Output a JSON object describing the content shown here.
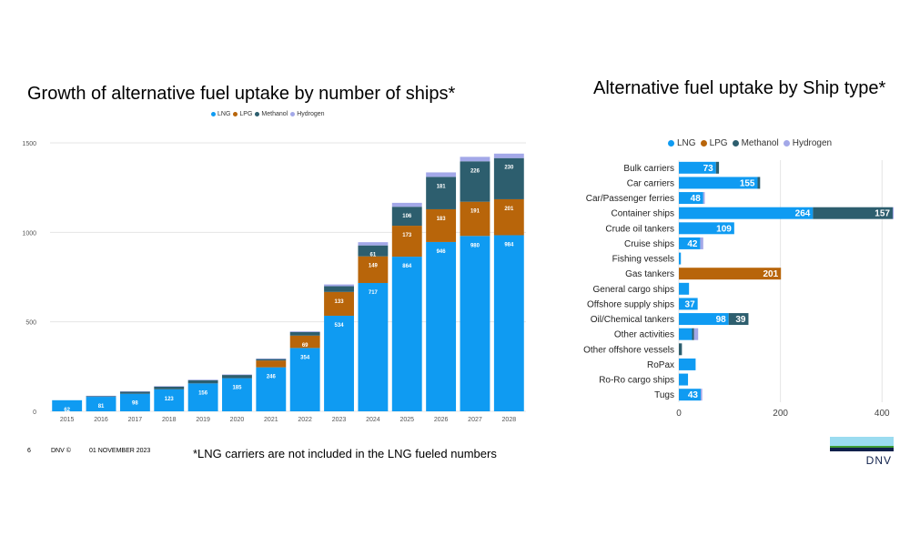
{
  "left_title": "Growth of alternative fuel uptake by number of ships*",
  "right_title": "Alternative fuel uptake by Ship type*",
  "footer": {
    "page": "6",
    "org": "DNV ©",
    "date": "01 NOVEMBER 2023",
    "note": "*LNG carriers are not included in the LNG fueled numbers"
  },
  "logo": {
    "text": "DNV",
    "colors": [
      "#9bdcf0",
      "#3f9c35",
      "#0f204b"
    ]
  },
  "colors": {
    "LNG": "#0f9bf2",
    "LPG": "#b8650a",
    "Methanol": "#2d5e6e",
    "Hydrogen": "#a3a8e8"
  },
  "chart_data": [
    {
      "type": "bar",
      "stacked": true,
      "orientation": "vertical",
      "categories": [
        "2015",
        "2016",
        "2017",
        "2018",
        "2019",
        "2020",
        "2021",
        "2022",
        "2023",
        "2024",
        "2025",
        "2026",
        "2027",
        "2028"
      ],
      "ylim": [
        0,
        1500
      ],
      "yticks": [
        0,
        500,
        1000,
        1500
      ],
      "grid": true,
      "legend_position": "top",
      "series": [
        {
          "name": "LNG",
          "color": "#0f9bf2",
          "values": [
            62,
            81,
            98,
            123,
            156,
            185,
            246,
            354,
            534,
            717,
            864,
            946,
            980,
            984
          ]
        },
        {
          "name": "LPG",
          "color": "#b8650a",
          "values": [
            0,
            0,
            0,
            0,
            0,
            0,
            38,
            69,
            133,
            149,
            173,
            183,
            191,
            201
          ]
        },
        {
          "name": "Methanol",
          "color": "#2d5e6e",
          "values": [
            0,
            4,
            12,
            15,
            18,
            18,
            8,
            20,
            32,
            61,
            106,
            181,
            226,
            230
          ]
        },
        {
          "name": "Hydrogen",
          "color": "#a3a8e8",
          "values": [
            0,
            2,
            2,
            3,
            3,
            3,
            3,
            4,
            10,
            18,
            22,
            25,
            25,
            25
          ]
        }
      ],
      "data_labels": {
        "LNG": [
          "62",
          "81",
          "98",
          "123",
          "156",
          "185",
          "246",
          "354",
          "534",
          "717",
          "864",
          "946",
          "980",
          "984"
        ],
        "LPG": [
          "",
          "",
          "",
          "",
          "",
          "",
          "",
          "69",
          "133",
          "149",
          "173",
          "183",
          "191",
          "201"
        ],
        "Methanol": [
          "",
          "",
          "",
          "",
          "",
          "",
          "",
          "",
          "",
          "61",
          "106",
          "181",
          "226",
          "230"
        ]
      }
    },
    {
      "type": "bar",
      "stacked": true,
      "orientation": "horizontal",
      "categories": [
        "Bulk carriers",
        "Car carriers",
        "Car/Passenger ferries",
        "Container ships",
        "Crude oil tankers",
        "Cruise ships",
        "Fishing vessels",
        "Gas tankers",
        "General cargo ships",
        "Offshore supply ships",
        "Oil/Chemical tankers",
        "Other activities",
        "Other offshore vessels",
        "RoPax",
        "Ro-Ro cargo ships",
        "Tugs"
      ],
      "xlim": [
        0,
        430
      ],
      "xticks": [
        0,
        200,
        400
      ],
      "grid": true,
      "legend_position": "top",
      "series": [
        {
          "name": "LNG",
          "color": "#0f9bf2",
          "values": [
            73,
            155,
            48,
            264,
            109,
            42,
            4,
            0,
            20,
            37,
            98,
            26,
            0,
            33,
            18,
            43
          ]
        },
        {
          "name": "LPG",
          "color": "#b8650a",
          "values": [
            0,
            0,
            0,
            0,
            0,
            0,
            0,
            201,
            0,
            0,
            0,
            0,
            0,
            0,
            0,
            0
          ]
        },
        {
          "name": "Methanol",
          "color": "#2d5e6e",
          "values": [
            6,
            5,
            0,
            157,
            0,
            0,
            0,
            0,
            0,
            0,
            39,
            4,
            6,
            0,
            0,
            0
          ]
        },
        {
          "name": "Hydrogen",
          "color": "#a3a8e8",
          "values": [
            0,
            0,
            3,
            2,
            0,
            6,
            0,
            0,
            0,
            0,
            0,
            8,
            0,
            0,
            0,
            3
          ]
        }
      ],
      "data_labels": {
        "LNG": [
          "73",
          "155",
          "48",
          "264",
          "109",
          "42",
          "",
          "",
          "",
          "37",
          "98",
          "",
          "",
          "",
          "",
          "43"
        ],
        "LPG": [
          "",
          "",
          "",
          "",
          "",
          "",
          "",
          "201",
          "",
          "",
          "",
          "",
          "",
          "",
          "",
          ""
        ],
        "Methanol": [
          "",
          "",
          "",
          "157",
          "",
          "",
          "",
          "",
          "",
          "",
          "39",
          "",
          "",
          "",
          "",
          ""
        ]
      }
    }
  ]
}
